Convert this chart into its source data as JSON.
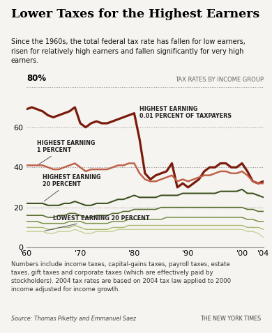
{
  "title": "Lower Taxes for the Highest Earners",
  "subtitle": "Since the 1960s, the total federal tax rate has fallen for low earners,\nrisen for relatively high earners and fallen significantly for very high\nearners.",
  "footnote": "Numbers include income taxes, capital-gains taxes, payroll taxes, estate\ntaxes, gift taxes and corporate taxes (which are effectively paid by\nstockholders). 2004 tax rates are based on 2004 tax law applied to 2000\nincome adjusted for income growth.",
  "source": "Source: Thomas Piketty and Emmanuel Saez",
  "nyt": "THE NEW YORK TIMES",
  "background": "#f5f4f0",
  "years": [
    1960,
    1961,
    1962,
    1963,
    1964,
    1965,
    1966,
    1967,
    1968,
    1969,
    1970,
    1971,
    1972,
    1973,
    1974,
    1975,
    1976,
    1977,
    1978,
    1979,
    1980,
    1981,
    1982,
    1983,
    1984,
    1985,
    1986,
    1987,
    1988,
    1989,
    1990,
    1991,
    1992,
    1993,
    1994,
    1995,
    1996,
    1997,
    1998,
    1999,
    2000,
    2001,
    2002,
    2003,
    2004
  ],
  "series": [
    {
      "key": "top001",
      "color": "#7a1a0a",
      "linewidth": 2.3,
      "values": [
        69,
        70,
        69,
        68,
        66,
        65,
        66,
        67,
        68,
        70,
        62,
        60,
        62,
        63,
        62,
        62,
        63,
        64,
        65,
        66,
        67,
        54,
        37,
        34,
        36,
        37,
        38,
        42,
        30,
        32,
        30,
        32,
        34,
        38,
        40,
        40,
        42,
        42,
        40,
        40,
        42,
        38,
        33,
        32,
        33
      ]
    },
    {
      "key": "top1",
      "color": "#c0614a",
      "linewidth": 1.8,
      "values": [
        41,
        41,
        41,
        41,
        40,
        39,
        39,
        40,
        41,
        42,
        40,
        38,
        39,
        39,
        39,
        39,
        40,
        41,
        41,
        42,
        42,
        37,
        34,
        33,
        33,
        34,
        35,
        36,
        33,
        34,
        33,
        34,
        35,
        36,
        36,
        37,
        38,
        38,
        37,
        37,
        38,
        36,
        33,
        32,
        32
      ]
    },
    {
      "key": "top20",
      "color": "#3d5220",
      "linewidth": 1.5,
      "values": [
        22,
        22,
        22,
        22,
        21,
        21,
        21,
        22,
        22,
        23,
        22,
        21,
        21,
        22,
        22,
        22,
        23,
        24,
        24,
        25,
        26,
        25,
        25,
        25,
        25,
        26,
        26,
        26,
        26,
        27,
        27,
        27,
        27,
        27,
        27,
        27,
        28,
        28,
        28,
        28,
        29,
        27,
        27,
        26,
        25
      ]
    },
    {
      "key": "mid",
      "color": "#5a7030",
      "linewidth": 1.2,
      "values": [
        16,
        16,
        16,
        16,
        15,
        15,
        16,
        16,
        17,
        17,
        16,
        15,
        15,
        16,
        16,
        16,
        17,
        17,
        18,
        18,
        19,
        19,
        19,
        19,
        19,
        20,
        20,
        20,
        20,
        20,
        20,
        20,
        20,
        20,
        20,
        20,
        20,
        20,
        20,
        20,
        20,
        19,
        19,
        18,
        18
      ]
    },
    {
      "key": "lower_mid",
      "color": "#7a9048",
      "linewidth": 1.1,
      "values": [
        13,
        13,
        13,
        12,
        12,
        12,
        12,
        12,
        13,
        13,
        13,
        12,
        12,
        12,
        12,
        12,
        13,
        13,
        13,
        14,
        14,
        14,
        14,
        14,
        14,
        14,
        15,
        15,
        15,
        15,
        15,
        15,
        15,
        15,
        15,
        15,
        15,
        15,
        15,
        15,
        15,
        14,
        14,
        13,
        13
      ]
    },
    {
      "key": "low",
      "color": "#a8b870",
      "linewidth": 1.0,
      "values": [
        10,
        10,
        10,
        10,
        9,
        9,
        10,
        10,
        10,
        11,
        10,
        9,
        9,
        9,
        9,
        9,
        10,
        10,
        10,
        11,
        11,
        11,
        11,
        11,
        11,
        11,
        11,
        11,
        11,
        11,
        11,
        11,
        11,
        11,
        11,
        11,
        11,
        11,
        11,
        11,
        11,
        10,
        10,
        10,
        9
      ]
    },
    {
      "key": "bottom20",
      "color": "#c8d098",
      "linewidth": 1.0,
      "values": [
        8,
        8,
        8,
        8,
        7,
        7,
        8,
        8,
        8,
        9,
        8,
        7,
        7,
        8,
        8,
        8,
        8,
        9,
        9,
        9,
        9,
        9,
        9,
        9,
        9,
        9,
        9,
        9,
        9,
        9,
        9,
        9,
        9,
        9,
        9,
        9,
        9,
        9,
        9,
        9,
        9,
        8,
        8,
        7,
        5
      ]
    }
  ]
}
